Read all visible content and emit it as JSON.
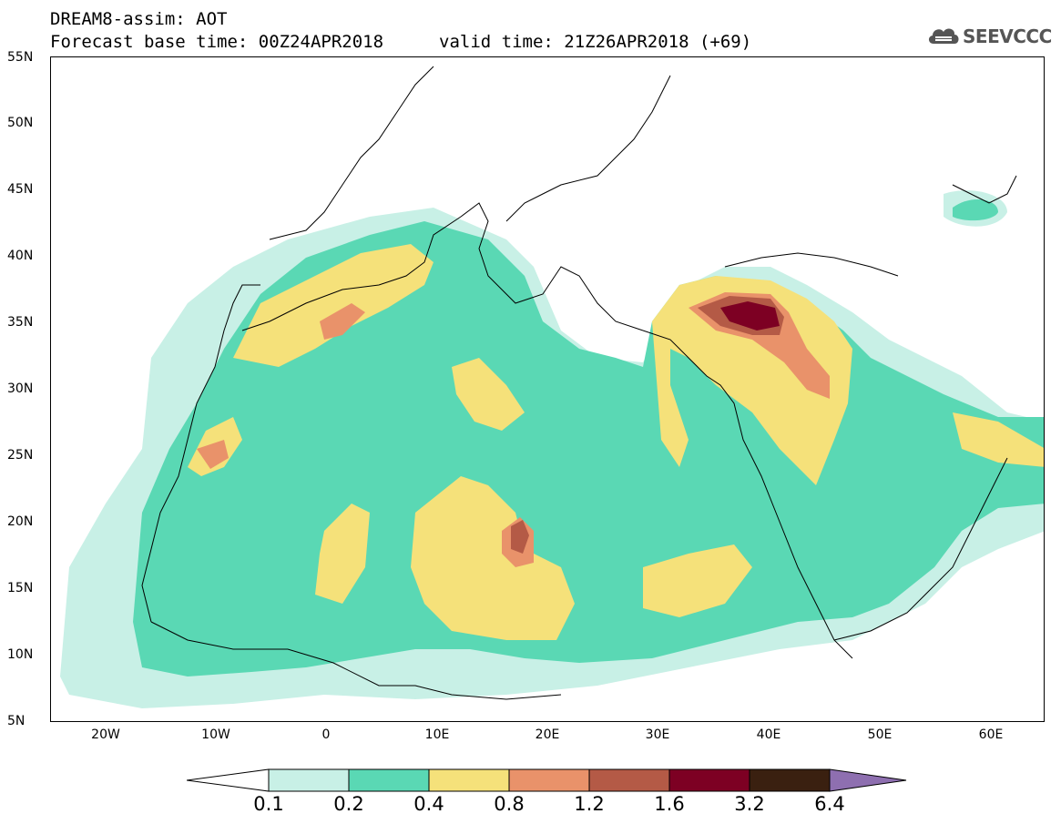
{
  "header": {
    "line1": "DREAM8-assim: AOT",
    "line2": "Forecast base time: 00Z24APR2018",
    "valid": "valid time: 21Z26APR2018 (+69)"
  },
  "logo": {
    "text": "SEEVCCC",
    "icon": "cloud-icon"
  },
  "map": {
    "y_ticks": [
      "55N",
      "50N",
      "45N",
      "40N",
      "35N",
      "30N",
      "25N",
      "20N",
      "15N",
      "10N",
      "5N"
    ],
    "x_ticks": [
      "20W",
      "10W",
      "0",
      "10E",
      "20E",
      "30E",
      "40E",
      "50E",
      "60E"
    ],
    "lon_range": [
      -25,
      65
    ],
    "lat_range": [
      5,
      55
    ]
  },
  "colorbar": {
    "labels": [
      "0.1",
      "0.2",
      "0.4",
      "0.8",
      "1.2",
      "1.6",
      "3.2",
      "6.4"
    ],
    "colors": [
      "#ffffff",
      "#c8f0e6",
      "#5ad8b4",
      "#f5e17a",
      "#e9926a",
      "#b45a46",
      "#7d0023",
      "#3a2010",
      "#8e6fb0"
    ]
  }
}
